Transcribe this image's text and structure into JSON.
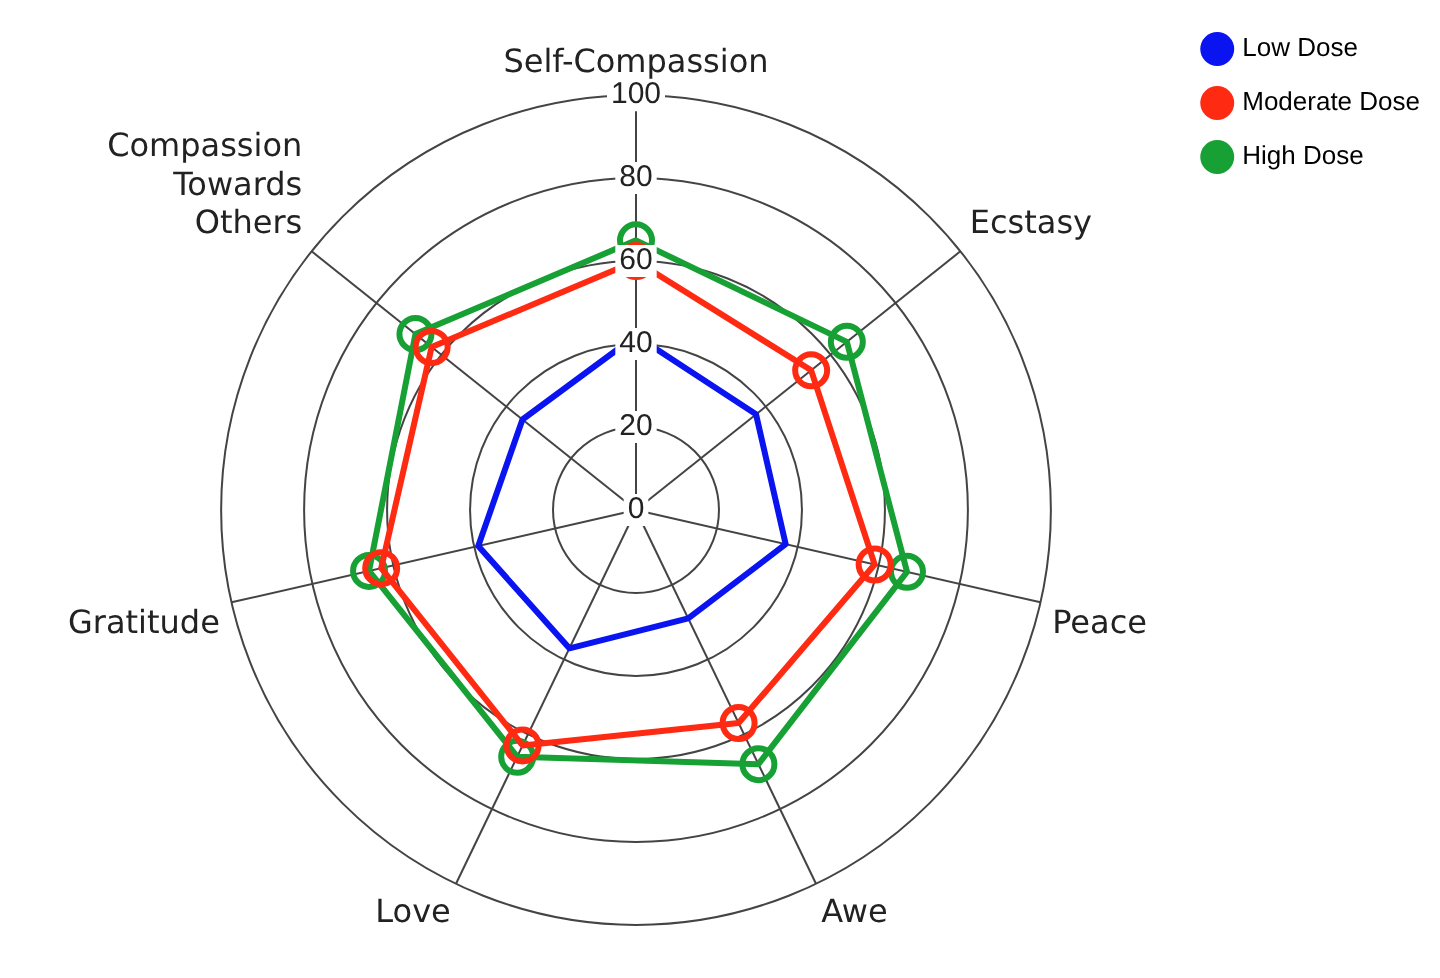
{
  "chart_data": {
    "type": "radar",
    "categories": [
      "Self-Compassion",
      "Ecstasy",
      "Peace",
      "Awe",
      "Love",
      "Gratitude",
      "Compassion Towards Others"
    ],
    "series": [
      {
        "name": "Low Dose",
        "color": "#0a14f0",
        "values": [
          42,
          37,
          37,
          29,
          37,
          39,
          35
        ],
        "marker": "none"
      },
      {
        "name": "Moderate Dose",
        "color": "#ff2a12",
        "values": [
          60,
          54,
          59,
          57,
          63,
          63,
          63
        ],
        "marker": "circle"
      },
      {
        "name": "High Dose",
        "color": "#17a034",
        "values": [
          65,
          65,
          67,
          68,
          66,
          66,
          68
        ],
        "marker": "circle"
      }
    ],
    "ylim": [
      0,
      100
    ],
    "yticks": [
      0,
      20,
      40,
      60,
      80,
      100
    ],
    "grid": true,
    "legend": "top right"
  }
}
